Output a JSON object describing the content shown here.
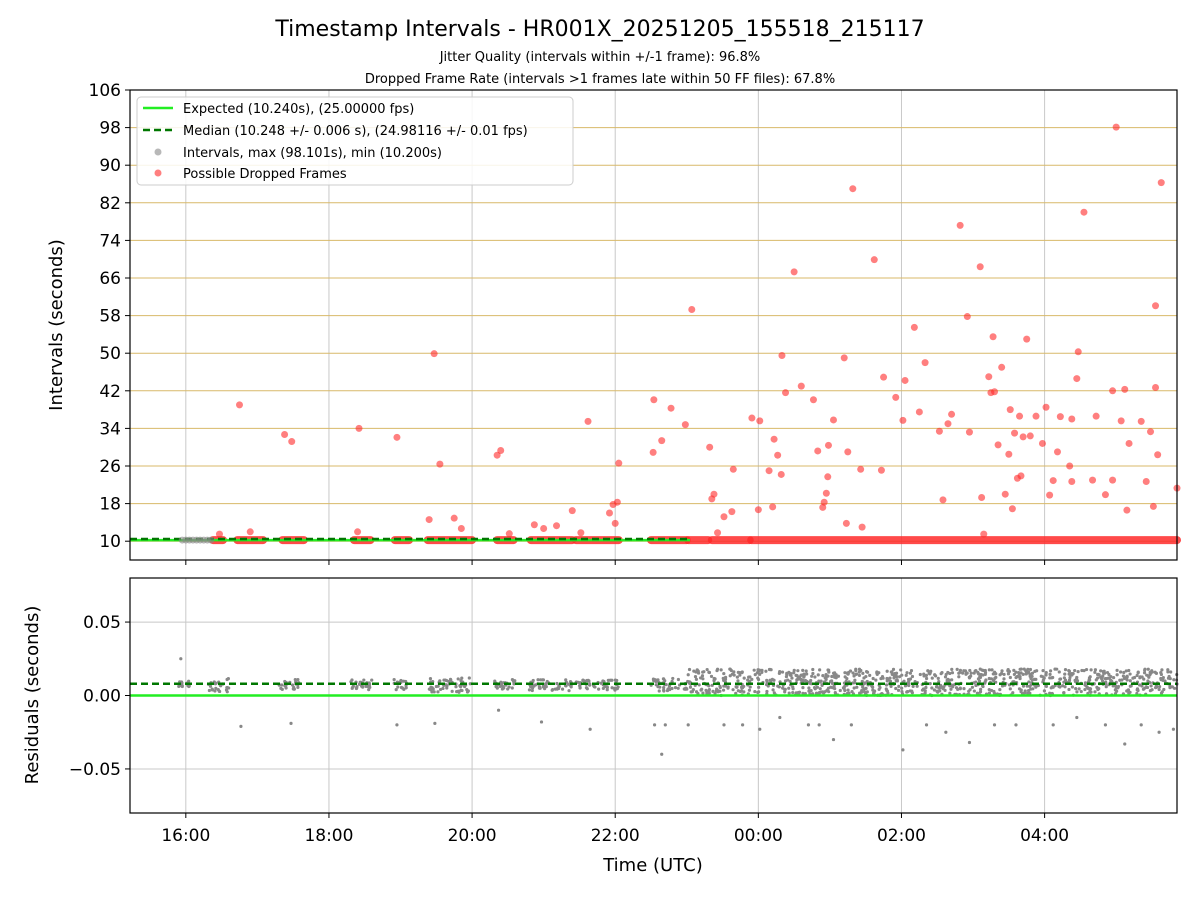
{
  "chart_data": [
    {
      "type": "scatter",
      "title": "Timestamp Intervals - HR001X_20251205_155518_215117",
      "subtitle_1": "Jitter Quality (intervals within +/-1 frame): 96.8%",
      "subtitle_2": "Dropped Frame Rate (intervals >1 frames late within 50 FF files): 67.8%",
      "ylabel": "Intervals (seconds)",
      "xlim_hours": [
        15.22,
        29.85
      ],
      "ylim": [
        6,
        106
      ],
      "y_ticks": [
        10,
        18,
        26,
        34,
        42,
        50,
        58,
        66,
        74,
        82,
        90,
        98,
        106
      ],
      "y_tick_labels": [
        "10",
        "18",
        "26",
        "34",
        "42",
        "50",
        "58",
        "66",
        "74",
        "82",
        "90",
        "98",
        "106"
      ],
      "x_ticks_hours": [
        16,
        18,
        20,
        22,
        24,
        26,
        28
      ],
      "legend": [
        "Expected (10.240s), (25.00000 fps)",
        "Median (10.248 +/- 0.006 s), (24.98116 +/- 0.01 fps)",
        "Intervals, max (98.101s), min (10.200s)",
        "Possible Dropped Frames"
      ],
      "legend_position": "top-left",
      "expected_interval": 10.24,
      "median_interval": 10.248,
      "colors": {
        "expected": "#22ee22",
        "median": "#007700",
        "intervals": "#888888",
        "dropped": "#ff2a2a",
        "gridline_h": "#d8b96a",
        "gridline_v": "#c8c8c8"
      },
      "baseline_segments_hours": [
        [
          16.38,
          16.52
        ],
        [
          16.72,
          17.08
        ],
        [
          17.35,
          17.65
        ],
        [
          18.35,
          18.58
        ],
        [
          18.92,
          19.12
        ],
        [
          19.38,
          20.0
        ],
        [
          20.35,
          20.58
        ],
        [
          20.82,
          21.4
        ],
        [
          21.45,
          22.05
        ],
        [
          22.5,
          23.0
        ],
        [
          23.02,
          23.3
        ],
        [
          23.35,
          23.88
        ],
        [
          23.9,
          29.85
        ]
      ],
      "dropped_frames": [
        [
          16.47,
          11.5
        ],
        [
          16.75,
          39
        ],
        [
          16.9,
          12
        ],
        [
          17.38,
          32.7
        ],
        [
          17.48,
          31.2
        ],
        [
          18.4,
          12
        ],
        [
          18.42,
          34
        ],
        [
          18.95,
          32.1
        ],
        [
          19.4,
          14.6
        ],
        [
          19.47,
          49.9
        ],
        [
          19.55,
          26.4
        ],
        [
          19.75,
          14.9
        ],
        [
          19.85,
          12.7
        ],
        [
          20.35,
          28.3
        ],
        [
          20.4,
          29.3
        ],
        [
          20.52,
          11.6
        ],
        [
          20.87,
          13.5
        ],
        [
          21.0,
          12.7
        ],
        [
          21.18,
          13.3
        ],
        [
          21.4,
          16.5
        ],
        [
          21.52,
          11.8
        ],
        [
          21.62,
          35.5
        ],
        [
          21.92,
          16
        ],
        [
          21.97,
          17.8
        ],
        [
          22.03,
          18.3
        ],
        [
          22.05,
          26.6
        ],
        [
          22.0,
          13.8
        ],
        [
          22.54,
          40.1
        ],
        [
          22.65,
          31.4
        ],
        [
          22.78,
          38.3
        ],
        [
          22.53,
          28.9
        ],
        [
          22.98,
          34.8
        ],
        [
          23.07,
          59.3
        ],
        [
          23.32,
          30
        ],
        [
          23.35,
          19
        ],
        [
          23.38,
          20
        ],
        [
          23.43,
          11.8
        ],
        [
          23.52,
          15.2
        ],
        [
          23.63,
          16.3
        ],
        [
          23.65,
          25.3
        ],
        [
          23.91,
          36.2
        ],
        [
          24.02,
          35.6
        ],
        [
          24.0,
          16.7
        ],
        [
          24.15,
          25
        ],
        [
          24.2,
          17.3
        ],
        [
          24.22,
          31.7
        ],
        [
          24.27,
          28.3
        ],
        [
          24.32,
          24.2
        ],
        [
          24.33,
          49.5
        ],
        [
          24.38,
          41.6
        ],
        [
          24.5,
          67.3
        ],
        [
          24.6,
          43
        ],
        [
          24.77,
          40.1
        ],
        [
          24.83,
          29.2
        ],
        [
          24.9,
          17.2
        ],
        [
          24.92,
          18.3
        ],
        [
          24.95,
          20.2
        ],
        [
          24.97,
          23.7
        ],
        [
          24.98,
          30.4
        ],
        [
          25.05,
          35.8
        ],
        [
          25.2,
          49
        ],
        [
          25.23,
          13.8
        ],
        [
          25.25,
          29
        ],
        [
          25.32,
          85
        ],
        [
          25.43,
          25.3
        ],
        [
          25.45,
          13
        ],
        [
          25.62,
          69.9
        ],
        [
          25.72,
          25.1
        ],
        [
          25.75,
          44.9
        ],
        [
          25.92,
          40.6
        ],
        [
          26.02,
          35.7
        ],
        [
          26.05,
          44.2
        ],
        [
          26.18,
          55.5
        ],
        [
          26.25,
          37.5
        ],
        [
          26.33,
          48
        ],
        [
          26.53,
          33.4
        ],
        [
          26.58,
          18.8
        ],
        [
          26.65,
          35
        ],
        [
          26.7,
          37
        ],
        [
          26.82,
          77.2
        ],
        [
          26.92,
          57.8
        ],
        [
          26.95,
          33.2
        ],
        [
          27.1,
          68.4
        ],
        [
          27.12,
          19.3
        ],
        [
          27.15,
          11.5
        ],
        [
          27.22,
          45
        ],
        [
          27.25,
          41.6
        ],
        [
          27.3,
          41.8
        ],
        [
          27.28,
          53.5
        ],
        [
          27.35,
          30.5
        ],
        [
          27.4,
          47
        ],
        [
          27.45,
          20
        ],
        [
          27.5,
          28.5
        ],
        [
          27.52,
          38
        ],
        [
          27.55,
          16.9
        ],
        [
          27.58,
          33
        ],
        [
          27.62,
          23.4
        ],
        [
          27.65,
          36.6
        ],
        [
          27.67,
          23.9
        ],
        [
          27.7,
          32.2
        ],
        [
          27.75,
          53
        ],
        [
          27.8,
          32.4
        ],
        [
          27.88,
          36.6
        ],
        [
          27.97,
          30.8
        ],
        [
          28.02,
          38.5
        ],
        [
          28.07,
          19.8
        ],
        [
          28.12,
          22.9
        ],
        [
          28.18,
          29
        ],
        [
          28.22,
          36.5
        ],
        [
          28.35,
          26
        ],
        [
          28.38,
          36
        ],
        [
          28.38,
          22.7
        ],
        [
          28.45,
          44.6
        ],
        [
          28.47,
          50.3
        ],
        [
          28.55,
          80
        ],
        [
          28.67,
          23
        ],
        [
          28.72,
          36.6
        ],
        [
          28.85,
          19.9
        ],
        [
          28.95,
          23
        ],
        [
          28.95,
          42
        ],
        [
          29.0,
          98.1
        ],
        [
          29.07,
          35.6
        ],
        [
          29.12,
          42.3
        ],
        [
          29.15,
          16.6
        ],
        [
          29.18,
          30.8
        ],
        [
          29.35,
          35.5
        ],
        [
          29.42,
          22.7
        ],
        [
          29.48,
          33.3
        ],
        [
          29.52,
          17.4
        ],
        [
          29.55,
          60.1
        ],
        [
          29.55,
          42.7
        ],
        [
          29.58,
          28.4
        ],
        [
          29.63,
          86.3
        ],
        [
          29.85,
          21.3
        ]
      ]
    },
    {
      "type": "scatter",
      "xlabel": "Time (UTC)",
      "ylabel": "Residuals (seconds)",
      "xlim_hours": [
        15.22,
        29.85
      ],
      "ylim": [
        -0.08,
        0.08
      ],
      "y_ticks": [
        0.05,
        0.0,
        -0.05
      ],
      "y_tick_labels": [
        "0.05",
        "0.00",
        "−0.05"
      ],
      "x_ticks_hours": [
        16,
        18,
        20,
        22,
        24,
        26,
        28
      ],
      "x_tick_labels": [
        "16:00",
        "18:00",
        "20:00",
        "22:00",
        "00:00",
        "02:00",
        "04:00"
      ],
      "expected_residual": 0.0,
      "median_residual": 0.008,
      "residual_outliers": [
        [
          15.93,
          0.025
        ],
        [
          16.77,
          -0.021
        ],
        [
          17.47,
          -0.019
        ],
        [
          18.95,
          -0.02
        ],
        [
          19.48,
          -0.019
        ],
        [
          20.37,
          -0.01
        ],
        [
          20.97,
          -0.018
        ],
        [
          21.65,
          -0.023
        ],
        [
          22.55,
          -0.02
        ],
        [
          22.65,
          -0.04
        ],
        [
          22.7,
          -0.02
        ],
        [
          23.02,
          -0.02
        ],
        [
          23.52,
          -0.02
        ],
        [
          23.78,
          -0.02
        ],
        [
          24.02,
          -0.023
        ],
        [
          24.3,
          -0.015
        ],
        [
          24.7,
          -0.02
        ],
        [
          24.85,
          -0.02
        ],
        [
          25.05,
          -0.03
        ],
        [
          25.3,
          -0.02
        ],
        [
          26.02,
          -0.037
        ],
        [
          26.35,
          -0.02
        ],
        [
          26.62,
          -0.025
        ],
        [
          26.95,
          -0.032
        ],
        [
          27.3,
          -0.02
        ],
        [
          27.6,
          -0.02
        ],
        [
          28.12,
          -0.02
        ],
        [
          28.45,
          -0.015
        ],
        [
          28.85,
          -0.02
        ],
        [
          29.12,
          -0.033
        ],
        [
          29.35,
          -0.02
        ],
        [
          29.6,
          -0.025
        ],
        [
          29.8,
          -0.023
        ]
      ],
      "residual_bands": [
        {
          "x_range": [
            15.9,
            16.05
          ],
          "y_range": [
            0.006,
            0.01
          ]
        },
        {
          "x_range": [
            16.3,
            16.6
          ],
          "y_range": [
            0.002,
            0.012
          ]
        },
        {
          "x_range": [
            17.3,
            17.6
          ],
          "y_range": [
            0.004,
            0.011
          ]
        },
        {
          "x_range": [
            18.3,
            18.6
          ],
          "y_range": [
            0.004,
            0.011
          ]
        },
        {
          "x_range": [
            18.9,
            19.1
          ],
          "y_range": [
            0.004,
            0.011
          ]
        },
        {
          "x_range": [
            19.4,
            20.0
          ],
          "y_range": [
            0.002,
            0.012
          ]
        },
        {
          "x_range": [
            20.3,
            20.6
          ],
          "y_range": [
            0.004,
            0.011
          ]
        },
        {
          "x_range": [
            20.8,
            21.4
          ],
          "y_range": [
            0.003,
            0.011
          ]
        },
        {
          "x_range": [
            21.45,
            22.05
          ],
          "y_range": [
            0.003,
            0.011
          ]
        },
        {
          "x_range": [
            22.5,
            23.0
          ],
          "y_range": [
            0.003,
            0.012
          ]
        },
        {
          "x_range": [
            23.0,
            29.85
          ],
          "y_range": [
            0.0,
            0.018
          ]
        }
      ]
    }
  ]
}
